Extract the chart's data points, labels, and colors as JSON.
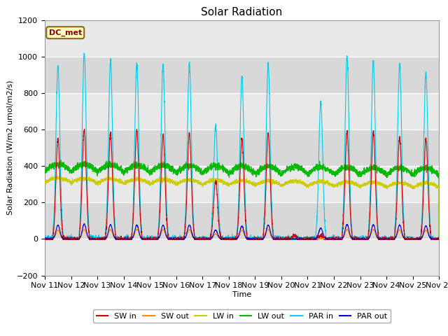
{
  "title": "Solar Radiation",
  "xlabel": "Time",
  "ylabel": "Solar Radiation (W/m2 umol/m2/s)",
  "ylim": [
    -200,
    1200
  ],
  "yticks": [
    -200,
    0,
    200,
    400,
    600,
    800,
    1000,
    1200
  ],
  "xlim_days": [
    11,
    26
  ],
  "xtick_days": [
    11,
    12,
    13,
    14,
    15,
    16,
    17,
    18,
    19,
    20,
    21,
    22,
    23,
    24,
    25,
    26
  ],
  "xtick_labels": [
    "Nov 11",
    "Nov 12",
    "Nov 13",
    "Nov 14",
    "Nov 15",
    "Nov 16",
    "Nov 17",
    "Nov 18",
    "Nov 19",
    "Nov 20",
    "Nov 21",
    "Nov 22",
    "Nov 23",
    "Nov 24",
    "Nov 25",
    "Nov 26"
  ],
  "annotation_text": "DC_met",
  "legend_entries": [
    "SW in",
    "SW out",
    "LW in",
    "LW out",
    "PAR in",
    "PAR out"
  ],
  "legend_colors": [
    "#cc0000",
    "#ff8800",
    "#cccc00",
    "#00bb00",
    "#00ccee",
    "#0000cc"
  ],
  "band_colors": [
    "#e8e8e8",
    "#d8d8d8"
  ],
  "grid_color": "#cccccc",
  "title_fontsize": 11,
  "label_fontsize": 8,
  "tick_fontsize": 8
}
